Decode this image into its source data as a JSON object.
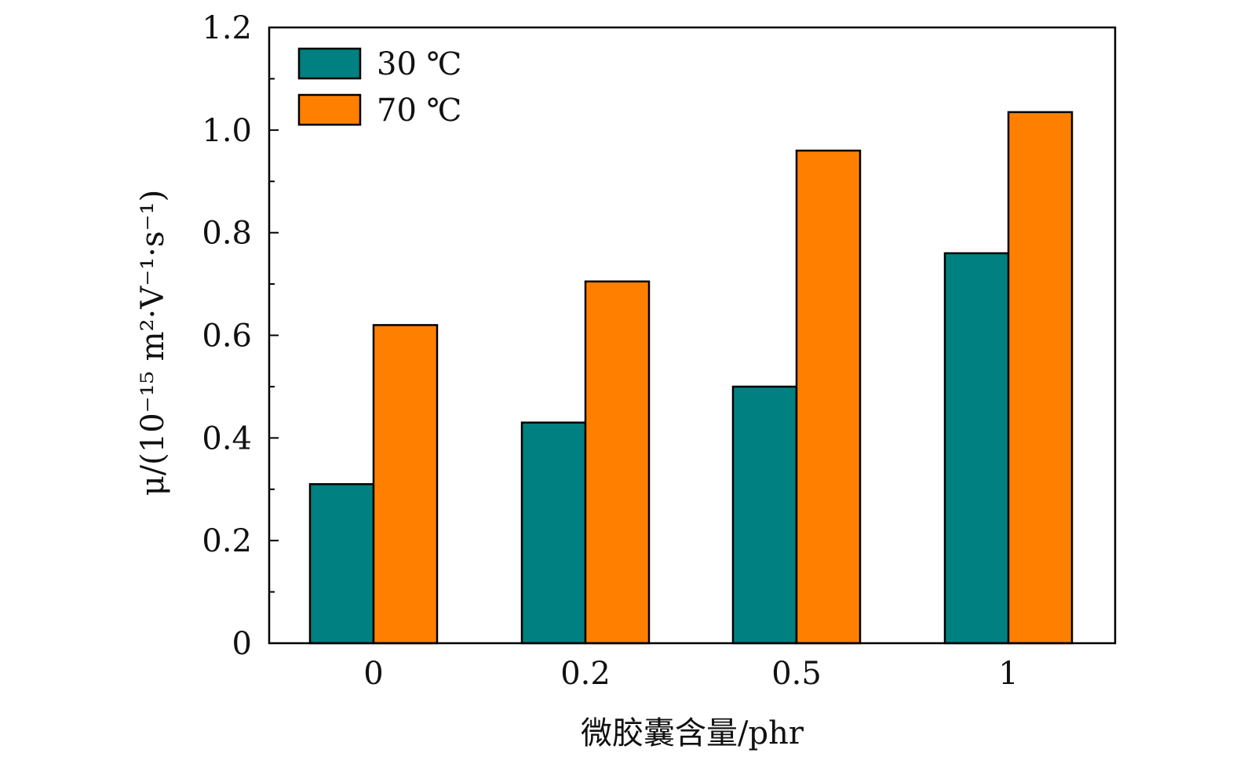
{
  "chart_data": {
    "type": "bar",
    "categories": [
      "0",
      "0.2",
      "0.5",
      "1"
    ],
    "series": [
      {
        "name": "30 ℃",
        "color": "#008080",
        "values": [
          0.31,
          0.43,
          0.5,
          0.76
        ]
      },
      {
        "name": "70 ℃",
        "color": "#ff8000",
        "values": [
          0.62,
          0.705,
          0.96,
          1.035
        ]
      }
    ],
    "xlabel": "微胶囊含量/phr",
    "ylabel": "μ/(10⁻¹⁵ m²·V⁻¹·s⁻¹)",
    "ylim": [
      0,
      1.2
    ],
    "yticks": [
      0,
      0.2,
      0.4,
      0.6,
      0.8,
      1.0,
      1.2
    ],
    "ytick_labels": [
      "0",
      "0.2",
      "0.4",
      "0.6",
      "0.8",
      "1.0",
      "1.2"
    ],
    "legend_position": "top-left",
    "grid": false
  }
}
